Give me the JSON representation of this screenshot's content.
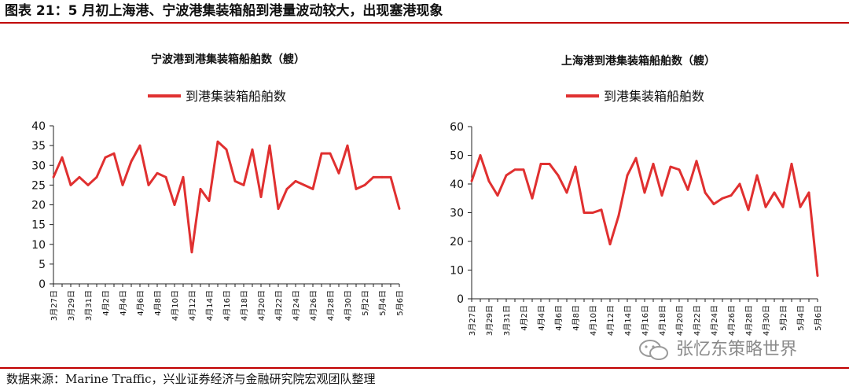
{
  "figure": {
    "title": "图表 21：5 月初上海港、宁波港集装箱船到港量波动较大，出现塞港现象",
    "source": "数据来源：Marine Traffic，兴业证券经济与金融研究院宏观团队整理",
    "watermark": "张忆东策略世界",
    "accent_color": "#c00000",
    "line_color": "#e03030"
  },
  "chart_data": [
    {
      "type": "line",
      "title": "宁波港到港集装箱船舶数（艘）",
      "legend": "到港集装箱船舶数",
      "ylim": [
        0,
        40
      ],
      "yticks": [
        0,
        5,
        10,
        15,
        20,
        25,
        30,
        35,
        40
      ],
      "xlabels": [
        "3月27日",
        "3月29日",
        "3月31日",
        "4月2日",
        "4月4日",
        "4月6日",
        "4月8日",
        "4月10日",
        "4月12日",
        "4月14日",
        "4月16日",
        "4月18日",
        "4月20日",
        "4月22日",
        "4月24日",
        "4月26日",
        "4月28日",
        "4月30日",
        "5月2日",
        "5月4日",
        "5月6日"
      ],
      "x": [
        "3月27日",
        "3月28日",
        "3月29日",
        "3月30日",
        "3月31日",
        "4月1日",
        "4月2日",
        "4月3日",
        "4月4日",
        "4月5日",
        "4月6日",
        "4月7日",
        "4月8日",
        "4月9日",
        "4月10日",
        "4月11日",
        "4月12日",
        "4月13日",
        "4月14日",
        "4月15日",
        "4月16日",
        "4月17日",
        "4月18日",
        "4月19日",
        "4月20日",
        "4月21日",
        "4月22日",
        "4月23日",
        "4月24日",
        "4月25日",
        "4月26日",
        "4月27日",
        "4月28日",
        "4月29日",
        "4月30日",
        "5月1日",
        "5月2日",
        "5月3日",
        "5月4日",
        "5月5日",
        "5月6日"
      ],
      "series": [
        {
          "values": [
            27,
            32,
            25,
            27,
            25,
            27,
            32,
            33,
            25,
            31,
            35,
            25,
            28,
            27,
            20,
            27,
            8,
            24,
            21,
            36,
            34,
            26,
            25,
            34,
            22,
            35,
            19,
            24,
            26,
            25,
            24,
            33,
            33,
            28,
            35,
            24,
            25,
            27,
            27,
            27,
            19
          ]
        }
      ],
      "grid": false,
      "legend_position": "top"
    },
    {
      "type": "line",
      "title": "上海港到港集装箱船舶数（艘）",
      "legend": "到港集装箱船舶数",
      "ylim": [
        0,
        60
      ],
      "yticks": [
        0,
        10,
        20,
        30,
        40,
        50,
        60
      ],
      "xlabels": [
        "3月27日",
        "3月29日",
        "3月31日",
        "4月2日",
        "4月4日",
        "4月6日",
        "4月8日",
        "4月10日",
        "4月12日",
        "4月14日",
        "4月16日",
        "4月18日",
        "4月20日",
        "4月22日",
        "4月24日",
        "4月26日",
        "4月28日",
        "4月30日",
        "5月2日",
        "5月4日",
        "5月6日"
      ],
      "x": [
        "3月27日",
        "3月28日",
        "3月29日",
        "3月30日",
        "3月31日",
        "4月1日",
        "4月2日",
        "4月3日",
        "4月4日",
        "4月5日",
        "4月6日",
        "4月7日",
        "4月8日",
        "4月9日",
        "4月10日",
        "4月11日",
        "4月12日",
        "4月13日",
        "4月14日",
        "4月15日",
        "4月16日",
        "4月17日",
        "4月18日",
        "4月19日",
        "4月20日",
        "4月21日",
        "4月22日",
        "4月23日",
        "4月24日",
        "4月25日",
        "4月26日",
        "4月27日",
        "4月28日",
        "4月29日",
        "4月30日",
        "5月1日",
        "5月2日",
        "5月3日",
        "5月4日",
        "5月5日",
        "5月6日"
      ],
      "series": [
        {
          "values": [
            41,
            50,
            41,
            36,
            43,
            45,
            45,
            35,
            47,
            47,
            43,
            37,
            46,
            30,
            30,
            31,
            19,
            29,
            43,
            49,
            37,
            47,
            36,
            46,
            45,
            38,
            48,
            37,
            33,
            35,
            36,
            40,
            31,
            43,
            32,
            37,
            32,
            47,
            32,
            37,
            8
          ]
        }
      ],
      "grid": false,
      "legend_position": "top"
    }
  ]
}
